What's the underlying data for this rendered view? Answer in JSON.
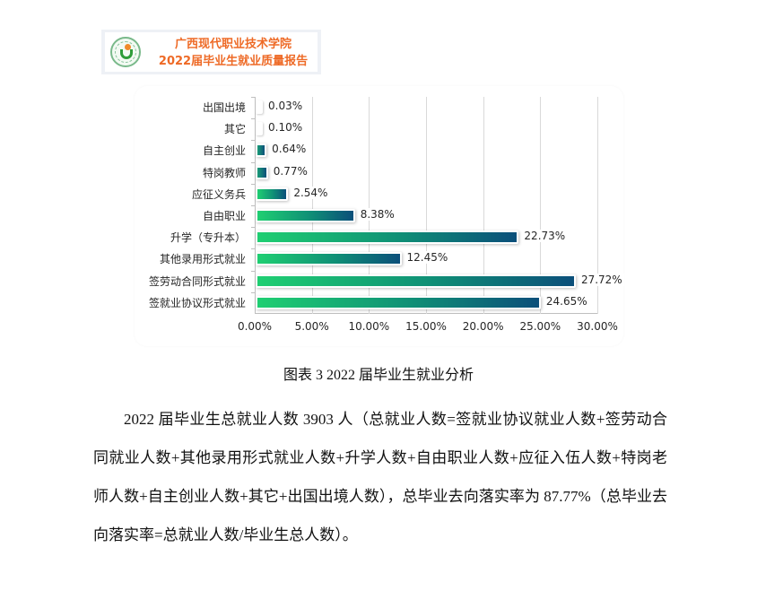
{
  "banner": {
    "line1": "广西现代职业技术学院",
    "line2": "2022届毕业生就业质量报告",
    "title_color": "#ee6a26"
  },
  "chart_data": {
    "type": "bar",
    "orientation": "horizontal",
    "title": "",
    "xlabel": "",
    "ylabel": "",
    "xlim": [
      0,
      30
    ],
    "grid": true,
    "legend": "none",
    "x_tick_labels": [
      "0.00%",
      "5.00%",
      "10.00%",
      "15.00%",
      "20.00%",
      "25.00%",
      "30.00%"
    ],
    "categories": [
      "出国出境",
      "其它",
      "自主创业",
      "特岗教师",
      "应征义务兵",
      "自由职业",
      "升学（专升本）",
      "其他录用形式就业",
      "签劳动合同形式就业",
      "签就业协议形式就业"
    ],
    "values": [
      0.03,
      0.1,
      0.64,
      0.77,
      2.54,
      8.38,
      22.73,
      12.45,
      27.72,
      24.65
    ],
    "value_labels": [
      "0.03%",
      "0.10%",
      "0.64%",
      "0.77%",
      "2.54%",
      "8.38%",
      "22.73%",
      "12.45%",
      "27.72%",
      "24.65%"
    ],
    "bar_gradient": [
      "#1fcf72",
      "#0b4f7a"
    ]
  },
  "caption": "图表 3   2022 届毕业生就业分析",
  "paragraph": "2022 届毕业生总就业人数 3903 人（总就业人数=签就业协议就业人数+签劳动合同就业人数+其他录用形式就业人数+升学人数+自由职业人数+应征入伍人数+特岗老师人数+自主创业人数+其它+出国出境人数），总毕业去向落实率为 87.77%（总毕业去向落实率=总就业人数/毕业生总人数）。"
}
